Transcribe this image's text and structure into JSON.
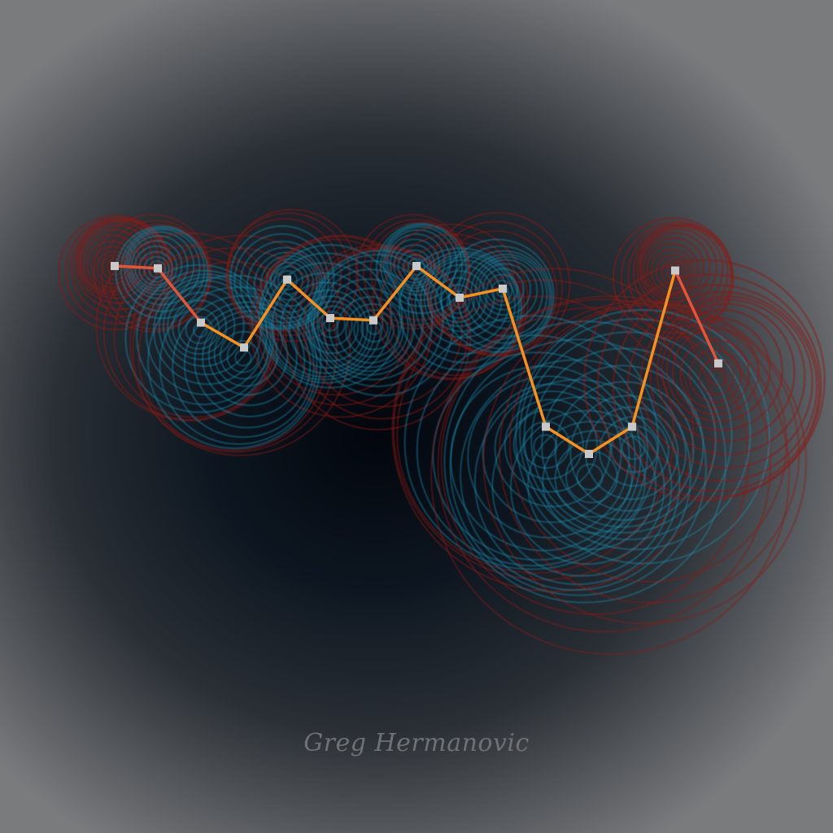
{
  "signature": "Greg Hermanovic",
  "colors": {
    "line": "#f7901e",
    "line_edge": "#e2553a",
    "marker": "#c9c9c9",
    "ring_cool": "#1d8fb0",
    "ring_warm": "#8a1a10"
  },
  "chart_data": {
    "type": "line",
    "title": "",
    "xlabel": "",
    "ylabel": "",
    "x": [
      1,
      2,
      3,
      4,
      5,
      6,
      7,
      8,
      9,
      10,
      11,
      12,
      13,
      14,
      15
    ],
    "y": [
      0.58,
      0.57,
      0.33,
      0.22,
      0.52,
      0.35,
      0.34,
      0.58,
      0.44,
      0.48,
      -0.13,
      -0.25,
      -0.13,
      0.56,
      0.15
    ],
    "xlim": [
      1,
      15
    ],
    "ylim": [
      -0.25,
      0.58
    ],
    "grid": false,
    "legend": "none"
  }
}
